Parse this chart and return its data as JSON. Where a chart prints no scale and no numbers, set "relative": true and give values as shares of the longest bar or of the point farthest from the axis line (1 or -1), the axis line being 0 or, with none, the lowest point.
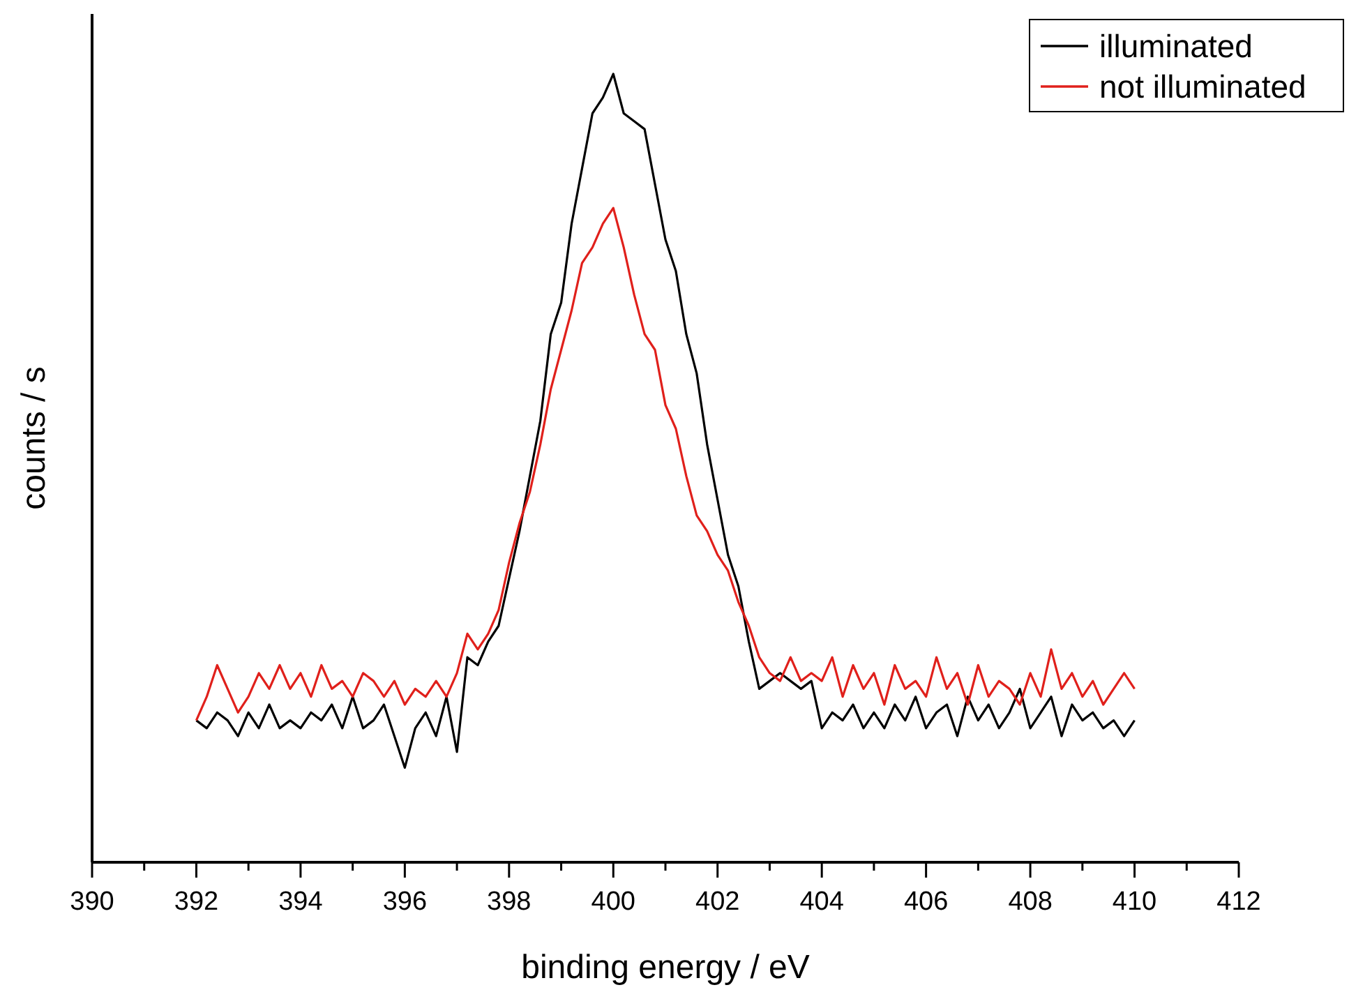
{
  "chart_data": {
    "type": "line",
    "relative": true,
    "xlabel": "binding energy / eV",
    "ylabel": "counts / s",
    "xlim": [
      390,
      412
    ],
    "xticks": [
      390,
      {
        "value": 391,
        "label": null
      },
      392,
      {
        "value": 393,
        "label": null
      },
      394,
      {
        "value": 395,
        "label": null
      },
      396,
      {
        "value": 397,
        "label": null
      },
      398,
      {
        "value": 399,
        "label": null
      },
      400,
      {
        "value": 401,
        "label": null
      },
      402,
      {
        "value": 403,
        "label": null
      },
      404,
      {
        "value": 405,
        "label": null
      },
      406,
      {
        "value": 407,
        "label": null
      },
      408,
      {
        "value": 409,
        "label": null
      },
      410,
      {
        "value": 411,
        "label": null
      },
      412
    ],
    "legend": "top right",
    "grid": false,
    "marker": "none",
    "line_style": "solid",
    "x": [
      392,
      392.2,
      392.4,
      392.6,
      392.8,
      393,
      393.2,
      393.4,
      393.6,
      393.8,
      394,
      394.2,
      394.4,
      394.6,
      394.8,
      395,
      395.2,
      395.4,
      395.6,
      395.8,
      396,
      396.2,
      396.4,
      396.6,
      396.8,
      397,
      397.2,
      397.4,
      397.6,
      397.8,
      398,
      398.2,
      398.4,
      398.6,
      398.8,
      399,
      399.2,
      399.4,
      399.6,
      399.8,
      400,
      400.2,
      400.4,
      400.6,
      400.8,
      401,
      401.2,
      401.4,
      401.6,
      401.8,
      402,
      402.2,
      402.4,
      402.6,
      402.8,
      403,
      403.2,
      403.4,
      403.6,
      403.8,
      404,
      404.2,
      404.4,
      404.6,
      404.8,
      405,
      405.2,
      405.4,
      405.6,
      405.8,
      406,
      406.2,
      406.4,
      406.6,
      406.8,
      407,
      407.2,
      407.4,
      407.6,
      407.8,
      408,
      408.2,
      408.4,
      408.6,
      408.8,
      409,
      409.2,
      409.4,
      409.6,
      409.8,
      410
    ],
    "series": [
      {
        "name": "illuminated",
        "color": "#000000",
        "values": [
          0.18,
          0.17,
          0.19,
          0.18,
          0.16,
          0.19,
          0.17,
          0.2,
          0.17,
          0.18,
          0.17,
          0.19,
          0.18,
          0.2,
          0.17,
          0.21,
          0.17,
          0.18,
          0.2,
          0.16,
          0.12,
          0.17,
          0.19,
          0.16,
          0.21,
          0.14,
          0.26,
          0.25,
          0.28,
          0.3,
          0.36,
          0.42,
          0.49,
          0.56,
          0.67,
          0.71,
          0.81,
          0.88,
          0.95,
          0.97,
          1,
          0.95,
          0.94,
          0.93,
          0.86,
          0.79,
          0.75,
          0.67,
          0.62,
          0.53,
          0.46,
          0.39,
          0.35,
          0.28,
          0.22,
          0.23,
          0.24,
          0.23,
          0.22,
          0.23,
          0.17,
          0.19,
          0.18,
          0.2,
          0.17,
          0.19,
          0.17,
          0.2,
          0.18,
          0.21,
          0.17,
          0.19,
          0.2,
          0.16,
          0.21,
          0.18,
          0.2,
          0.17,
          0.19,
          0.22,
          0.17,
          0.19,
          0.21,
          0.16,
          0.2,
          0.18,
          0.19,
          0.17,
          0.18,
          0.16,
          0.18
        ]
      },
      {
        "name": "not illuminated",
        "color": "#e0201b",
        "values": [
          0.18,
          0.21,
          0.25,
          0.22,
          0.19,
          0.21,
          0.24,
          0.22,
          0.25,
          0.22,
          0.24,
          0.21,
          0.25,
          0.22,
          0.23,
          0.21,
          0.24,
          0.23,
          0.21,
          0.23,
          0.2,
          0.22,
          0.21,
          0.23,
          0.21,
          0.24,
          0.29,
          0.27,
          0.29,
          0.32,
          0.38,
          0.43,
          0.47,
          0.53,
          0.6,
          0.65,
          0.7,
          0.76,
          0.78,
          0.81,
          0.83,
          0.78,
          0.72,
          0.67,
          0.65,
          0.58,
          0.55,
          0.49,
          0.44,
          0.42,
          0.39,
          0.37,
          0.33,
          0.3,
          0.26,
          0.24,
          0.23,
          0.26,
          0.23,
          0.24,
          0.23,
          0.26,
          0.21,
          0.25,
          0.22,
          0.24,
          0.2,
          0.25,
          0.22,
          0.23,
          0.21,
          0.26,
          0.22,
          0.24,
          0.2,
          0.25,
          0.21,
          0.23,
          0.22,
          0.2,
          0.24,
          0.21,
          0.27,
          0.22,
          0.24,
          0.21,
          0.23,
          0.2,
          0.22,
          0.24,
          0.22
        ]
      }
    ]
  }
}
